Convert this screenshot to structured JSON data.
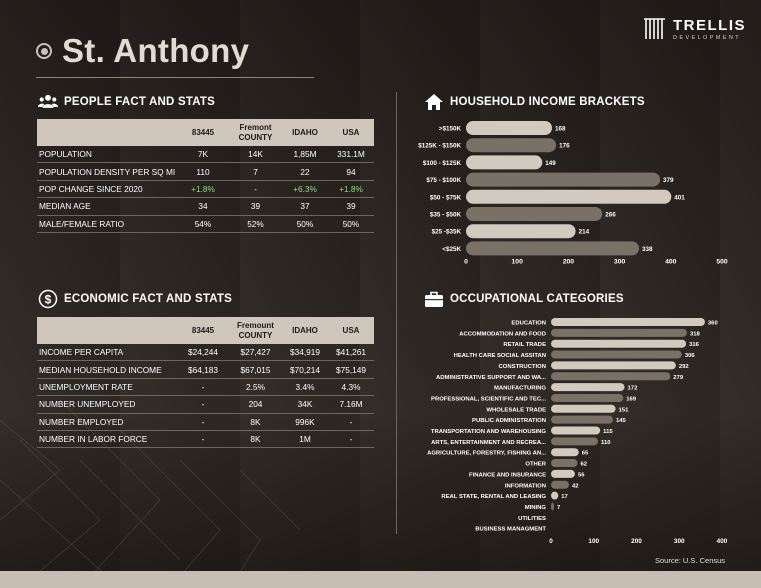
{
  "title": "St. Anthony",
  "logo": {
    "name": "TRELLIS",
    "sub": "DEVELOPMENT"
  },
  "people": {
    "heading": "PEOPLE FACT AND STATS",
    "headers": [
      "",
      "83445",
      "Fremont COUNTY",
      "IDAHO",
      "USA"
    ],
    "rows": [
      [
        "POPULATION",
        "7K",
        "14K",
        "1,85M",
        "331.1M"
      ],
      [
        "POPULATION DENSITY PER SQ MI",
        "110",
        "7",
        "22",
        "94"
      ],
      [
        "POP CHANGE SINCE 2020",
        "+1.8%",
        "-",
        "+6.3%",
        "+1.8%"
      ],
      [
        "MEDIAN AGE",
        "34",
        "39",
        "37",
        "39"
      ],
      [
        "MALE/FEMALE RATIO",
        "54%",
        "52%",
        "50%",
        "50%"
      ]
    ]
  },
  "economic": {
    "heading": "ECONOMIC FACT AND STATS",
    "headers": [
      "",
      "83445",
      "Fremount COUNTY",
      "IDAHO",
      "USA"
    ],
    "rows": [
      [
        "INCOME PER CAPITA",
        "$24,244",
        "$27,427",
        "$34,919",
        "$41,261"
      ],
      [
        "MEDIAN HOUSEHOLD INCOME",
        "$64,183",
        "$67,015",
        "$70,214",
        "$75,149"
      ],
      [
        "UNEMPLOYMENT RATE",
        "-",
        "2.5%",
        "3.4%",
        "4.3%"
      ],
      [
        "NUMBER UNEMPLOYED",
        "-",
        "204",
        "34K",
        "7.16M"
      ],
      [
        "NUMBER EMPLOYED",
        "-",
        "8K",
        "996K",
        "-"
      ],
      [
        "NUMBER IN LABOR FORCE",
        "-",
        "8K",
        "1M",
        "-"
      ]
    ]
  },
  "colors": {
    "bar_light": "#d2c9bf",
    "bar_dark": "#7a7166",
    "accent_green": "#8fe07c"
  },
  "chart_data": [
    {
      "type": "bar",
      "orientation": "horizontal",
      "title": "HOUSEHOLD INCOME BRACKETS",
      "categories": [
        ">$150K",
        "$125K - $150K",
        "$100 - $125K",
        "$75 - $100K",
        "$50 - $75K",
        "$35 - $50K",
        "$25 -$35K",
        "<$25K"
      ],
      "values": [
        168,
        176,
        149,
        379,
        401,
        266,
        214,
        338
      ],
      "xlim": [
        0,
        500
      ],
      "xticks": [
        0,
        100,
        200,
        300,
        400,
        500
      ]
    },
    {
      "type": "bar",
      "orientation": "horizontal",
      "title": "OCCUPATIONAL CATEGORIES",
      "categories": [
        "EDUCATION",
        "ACCOMMODATION AND FOOD",
        "RETAIL TRADE",
        "HEALTH CARE SOCIAL ASSITAN",
        "CONSTRUCTION",
        "ADMINISTRATIVE SUPPORT AND WA...",
        "MANUFACTURING",
        "PROFESSIONAL, SCIENTIFIC AND TEC...",
        "WHOLESALE TRADE",
        "PUBLIC ADMINISTRATION",
        "TRANSPORTATION AND WAREHOUSING",
        "ARTS, ENTERTAINMENT AND RECREA...",
        "AGRICULTURE, FORESTRY, FISHING AN...",
        "OTHER",
        "FINANCE AND INSURANCE",
        "INFORMATION",
        "REAL STATE, RENTAL AND LEASING",
        "MINING",
        "UTILITIES",
        "BUSINESS MANAGMENT"
      ],
      "values": [
        360,
        318,
        316,
        306,
        292,
        279,
        172,
        169,
        151,
        145,
        115,
        110,
        65,
        62,
        56,
        42,
        17,
        7,
        0,
        0
      ],
      "value_labels": [
        "360",
        "318",
        "316",
        "306",
        "292",
        "279",
        "172",
        "169",
        "151",
        "145",
        "115",
        "110",
        "65",
        "62",
        "56",
        "42",
        "17",
        "7",
        "",
        ""
      ],
      "xlim": [
        0,
        400
      ],
      "xticks": [
        0,
        100,
        200,
        300,
        400
      ]
    }
  ],
  "source": "Source: U.S. Census"
}
